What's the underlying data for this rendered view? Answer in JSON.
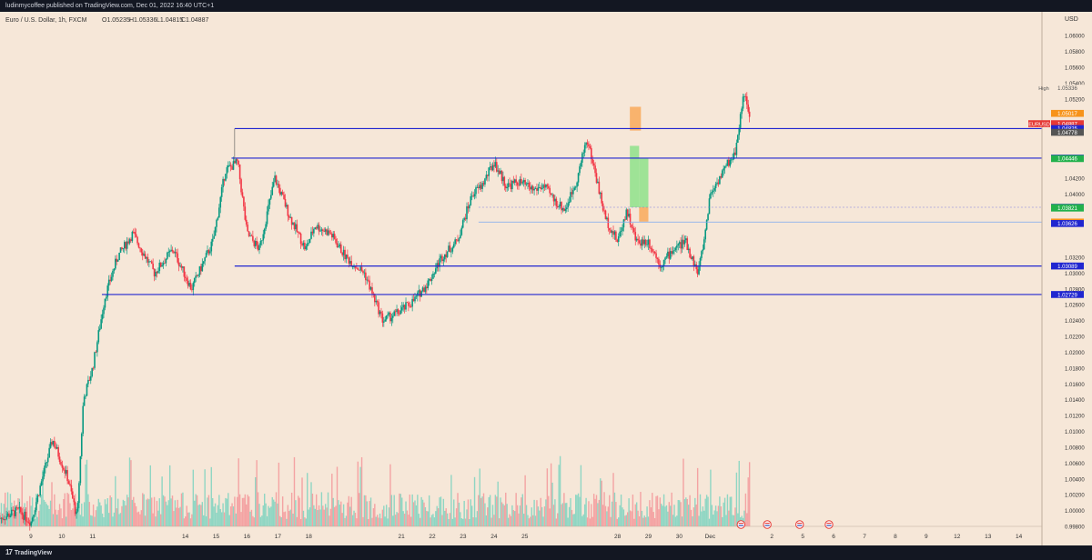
{
  "header": {
    "published": "ludinmycoffee published on TradingView.com, Dec 01, 2022 16:40 UTC+1"
  },
  "footer": {
    "brand": "TradingView",
    "logo_glyph": "17"
  },
  "colors": {
    "background": "#f6e7d8",
    "up_candle": "#089981",
    "down_candle": "#f23645",
    "level_line": "#2026d0",
    "vol_up": "#8fd6c3",
    "vol_down": "#f4a3a3",
    "profit_zone": "#8ee28b",
    "loss_zone": "#f9a95a",
    "ema_line": "#3179f5"
  },
  "chart_data": {
    "type": "candlestick",
    "title": "Euro / U.S. Dollar, 1h, FXCM",
    "ohlc_header": {
      "open": "O1.05235",
      "high": "H1.05336",
      "low": "L1.04815",
      "close": "C1.04887"
    },
    "y_axis": {
      "unit_label": "USD",
      "ylim": [
        0.998,
        1.063
      ],
      "ticks": [
        "1.06000",
        "1.05800",
        "1.05600",
        "1.05400",
        "1.05200",
        "1.04200",
        "1.04000",
        "1.03200",
        "1.03000",
        "1.02800",
        "1.02600",
        "1.02400",
        "1.02200",
        "1.02000",
        "1.01800",
        "1.01600",
        "1.01400",
        "1.01200",
        "1.01000",
        "1.00800",
        "1.00600",
        "1.00400",
        "1.00200",
        "1.00000",
        "0.99800"
      ]
    },
    "x_axis": {
      "ticks": [
        {
          "label": "9",
          "day": 9
        },
        {
          "label": "10",
          "day": 10
        },
        {
          "label": "11",
          "day": 11
        },
        {
          "label": "14",
          "day": 14
        },
        {
          "label": "15",
          "day": 15
        },
        {
          "label": "16",
          "day": 16
        },
        {
          "label": "17",
          "day": 17
        },
        {
          "label": "18",
          "day": 18
        },
        {
          "label": "21",
          "day": 21
        },
        {
          "label": "22",
          "day": 22
        },
        {
          "label": "23",
          "day": 23
        },
        {
          "label": "24",
          "day": 24
        },
        {
          "label": "25",
          "day": 25
        },
        {
          "label": "28",
          "day": 28
        },
        {
          "label": "29",
          "day": 29
        },
        {
          "label": "30",
          "day": 30
        },
        {
          "label": "Dec",
          "day": 31
        },
        {
          "label": "2",
          "day": 33
        },
        {
          "label": "5",
          "day": 34
        },
        {
          "label": "6",
          "day": 35
        },
        {
          "label": "7",
          "day": 36
        },
        {
          "label": "8",
          "day": 37
        },
        {
          "label": "9",
          "day": 38
        },
        {
          "label": "12",
          "day": 39
        },
        {
          "label": "13",
          "day": 40
        },
        {
          "label": "14",
          "day": 41
        }
      ]
    },
    "horizontal_levels": [
      {
        "price": 1.04825,
        "from_day": 15.6,
        "color": "#2026d0"
      },
      {
        "price": 1.04452,
        "from_day": 15.5,
        "color": "#2026d0"
      },
      {
        "price": 1.03089,
        "from_day": 15.6,
        "color": "#2026d0"
      },
      {
        "price": 1.02729,
        "from_day": 11.3,
        "color": "#2026d0"
      }
    ],
    "price_labels": [
      {
        "text": "1.05336",
        "price": 1.05336,
        "bg": "#f6e7d8",
        "fg": "#555555",
        "tag": "High"
      },
      {
        "text": "1.05017",
        "price": 1.05017,
        "bg": "#f7931a",
        "fg": "#ffffff"
      },
      {
        "text": "1.04887",
        "price": 1.04887,
        "bg": "#e53935",
        "fg": "#ffffff",
        "tag": "EURUSD",
        "sub": "19:15"
      },
      {
        "text": "1.04825",
        "price": 1.04825,
        "bg": "#2026d0",
        "fg": "#ffffff"
      },
      {
        "text": "1.04778",
        "price": 1.04778,
        "bg": "#555555",
        "fg": "#ffffff"
      },
      {
        "text": "1.04452",
        "price": 1.04452,
        "bg": "#2026d0",
        "fg": "#ffffff"
      },
      {
        "text": "1.04446",
        "price": 1.04446,
        "bg": "#22b14c",
        "fg": "#ffffff"
      },
      {
        "text": "1.03831",
        "price": 1.03831,
        "bg": "#2026d0",
        "fg": "#ffffff"
      },
      {
        "text": "1.03827",
        "price": 1.03827,
        "bg": "#22b14c",
        "fg": "#ffffff"
      },
      {
        "text": "1.03821",
        "price": 1.03821,
        "bg": "#22b14c",
        "fg": "#ffffff"
      },
      {
        "text": "1.03644",
        "price": 1.03644,
        "bg": "#f7931a",
        "fg": "#ffffff"
      },
      {
        "text": "1.03626",
        "price": 1.03626,
        "bg": "#2026d0",
        "fg": "#ffffff"
      },
      {
        "text": "1.03089",
        "price": 1.03089,
        "bg": "#2026d0",
        "fg": "#ffffff"
      },
      {
        "text": "1.02729",
        "price": 1.02729,
        "bg": "#2026d0",
        "fg": "#ffffff"
      }
    ],
    "position_box": {
      "from_day": 28.4,
      "to_day": 29.0,
      "entry": 1.03831,
      "target_top": 1.04446,
      "split_day": 28.7,
      "stop_top": 1.051,
      "stop_bottom": 1.048
    },
    "candle_path": [
      {
        "day": 8.0,
        "price": 0.999
      },
      {
        "day": 8.6,
        "price": 1.0
      },
      {
        "day": 9.0,
        "price": 0.9985
      },
      {
        "day": 9.7,
        "price": 1.009
      },
      {
        "day": 10.2,
        "price": 1.004
      },
      {
        "day": 10.5,
        "price": 0.999
      },
      {
        "day": 10.7,
        "price": 1.014
      },
      {
        "day": 11.0,
        "price": 1.018
      },
      {
        "day": 11.4,
        "price": 1.027
      },
      {
        "day": 11.8,
        "price": 1.032
      },
      {
        "day": 12.3,
        "price": 1.035
      },
      {
        "day": 13.0,
        "price": 1.03
      },
      {
        "day": 13.6,
        "price": 1.033
      },
      {
        "day": 14.2,
        "price": 1.028
      },
      {
        "day": 14.9,
        "price": 1.034
      },
      {
        "day": 15.3,
        "price": 1.043
      },
      {
        "day": 15.7,
        "price": 1.044
      },
      {
        "day": 16.0,
        "price": 1.035
      },
      {
        "day": 16.4,
        "price": 1.033
      },
      {
        "day": 16.9,
        "price": 1.042
      },
      {
        "day": 17.4,
        "price": 1.037
      },
      {
        "day": 17.9,
        "price": 1.033
      },
      {
        "day": 18.2,
        "price": 1.036
      },
      {
        "day": 18.7,
        "price": 1.035
      },
      {
        "day": 19.2,
        "price": 1.032
      },
      {
        "day": 19.8,
        "price": 1.03
      },
      {
        "day": 20.4,
        "price": 1.024
      },
      {
        "day": 20.9,
        "price": 1.025
      },
      {
        "day": 21.4,
        "price": 1.0265
      },
      {
        "day": 21.9,
        "price": 1.029
      },
      {
        "day": 22.3,
        "price": 1.032
      },
      {
        "day": 22.8,
        "price": 1.034
      },
      {
        "day": 23.3,
        "price": 1.04
      },
      {
        "day": 23.6,
        "price": 1.041
      },
      {
        "day": 24.0,
        "price": 1.044
      },
      {
        "day": 24.4,
        "price": 1.041
      },
      {
        "day": 24.8,
        "price": 1.0415
      },
      {
        "day": 25.3,
        "price": 1.0405
      },
      {
        "day": 25.6,
        "price": 1.041
      },
      {
        "day": 26.0,
        "price": 1.039
      },
      {
        "day": 26.3,
        "price": 1.038
      },
      {
        "day": 26.7,
        "price": 1.042
      },
      {
        "day": 27.0,
        "price": 1.047
      },
      {
        "day": 27.2,
        "price": 1.044
      },
      {
        "day": 27.6,
        "price": 1.037
      },
      {
        "day": 28.0,
        "price": 1.034
      },
      {
        "day": 28.3,
        "price": 1.038
      },
      {
        "day": 28.6,
        "price": 1.034
      },
      {
        "day": 29.0,
        "price": 1.034
      },
      {
        "day": 29.4,
        "price": 1.031
      },
      {
        "day": 29.8,
        "price": 1.033
      },
      {
        "day": 30.2,
        "price": 1.034
      },
      {
        "day": 30.6,
        "price": 1.03
      },
      {
        "day": 30.8,
        "price": 1.034
      },
      {
        "day": 31.0,
        "price": 1.04
      },
      {
        "day": 31.3,
        "price": 1.042
      },
      {
        "day": 31.6,
        "price": 1.044
      },
      {
        "day": 31.8,
        "price": 1.045
      },
      {
        "day": 32.1,
        "price": 1.053
      },
      {
        "day": 32.3,
        "price": 1.0488
      }
    ]
  }
}
